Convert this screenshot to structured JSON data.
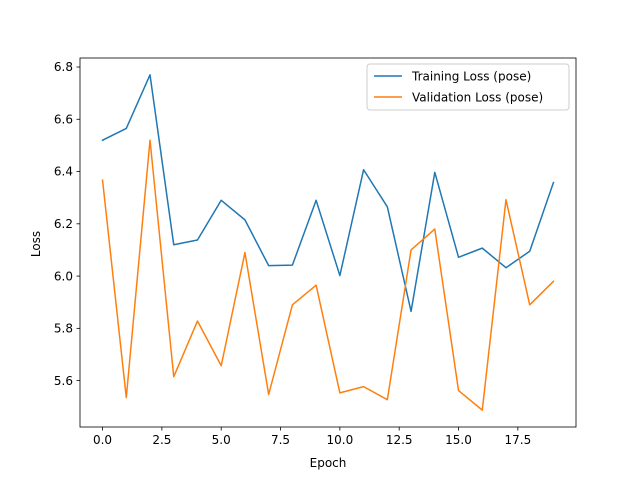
{
  "chart_data": {
    "type": "line",
    "title": "",
    "xlabel": "Epoch",
    "ylabel": "Loss",
    "x": [
      0,
      1,
      2,
      3,
      4,
      5,
      6,
      7,
      8,
      9,
      10,
      11,
      12,
      13,
      14,
      15,
      16,
      17,
      18,
      19
    ],
    "series": [
      {
        "name": "Training Loss (pose)",
        "color": "#1f77b4",
        "values": [
          6.52,
          6.565,
          6.77,
          6.12,
          6.138,
          6.29,
          6.215,
          6.04,
          6.042,
          6.29,
          6.002,
          6.407,
          6.265,
          5.865,
          6.397,
          6.072,
          6.107,
          6.032,
          6.095,
          6.358
        ]
      },
      {
        "name": "Validation Loss (pose)",
        "color": "#ff7f0e",
        "values": [
          6.367,
          5.535,
          6.52,
          5.615,
          5.828,
          5.657,
          6.09,
          5.547,
          5.89,
          5.965,
          5.553,
          5.577,
          5.527,
          6.1,
          6.18,
          5.562,
          5.487,
          6.292,
          5.89,
          5.98
        ]
      }
    ],
    "xlim": [
      -0.95,
      19.95
    ],
    "ylim": [
      5.4225,
      6.8345
    ],
    "xticks": [
      0,
      2.5,
      5,
      7.5,
      10,
      12.5,
      15,
      17.5
    ],
    "xtick_labels": [
      "0.0",
      "2.5",
      "5.0",
      "7.5",
      "10.0",
      "12.5",
      "15.0",
      "17.5"
    ],
    "yticks": [
      5.6,
      5.8,
      6.0,
      6.2,
      6.4,
      6.6,
      6.8
    ],
    "ytick_labels": [
      "5.6",
      "5.8",
      "6.0",
      "6.2",
      "6.4",
      "6.6",
      "6.8"
    ],
    "grid": false,
    "legend_position": "top-right"
  }
}
